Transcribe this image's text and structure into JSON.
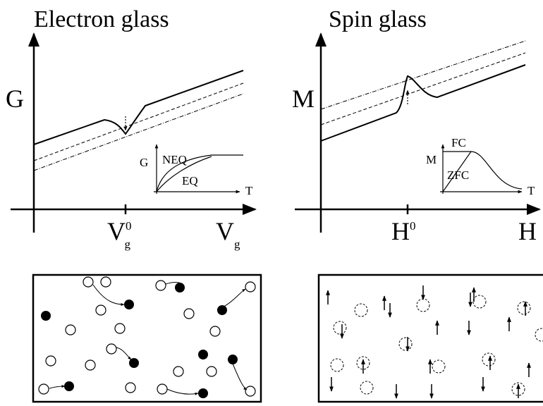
{
  "panels": [
    {
      "title": "Electron glass",
      "y_label": "G",
      "x_label": {
        "base": "V",
        "sub": "g"
      },
      "x_mark": {
        "base": "V",
        "sub": "g",
        "sup": "0"
      },
      "inset": {
        "y_label": "G",
        "x_label": "T",
        "curves": [
          "NEQ",
          "EQ"
        ]
      }
    },
    {
      "title": "Spin glass",
      "y_label": "M",
      "x_label": {
        "base": "H"
      },
      "x_mark": {
        "base": "H",
        "sup": "0"
      },
      "inset": {
        "y_label": "M",
        "x_label": "T",
        "curves": [
          "FC",
          "ZFC"
        ]
      }
    }
  ]
}
